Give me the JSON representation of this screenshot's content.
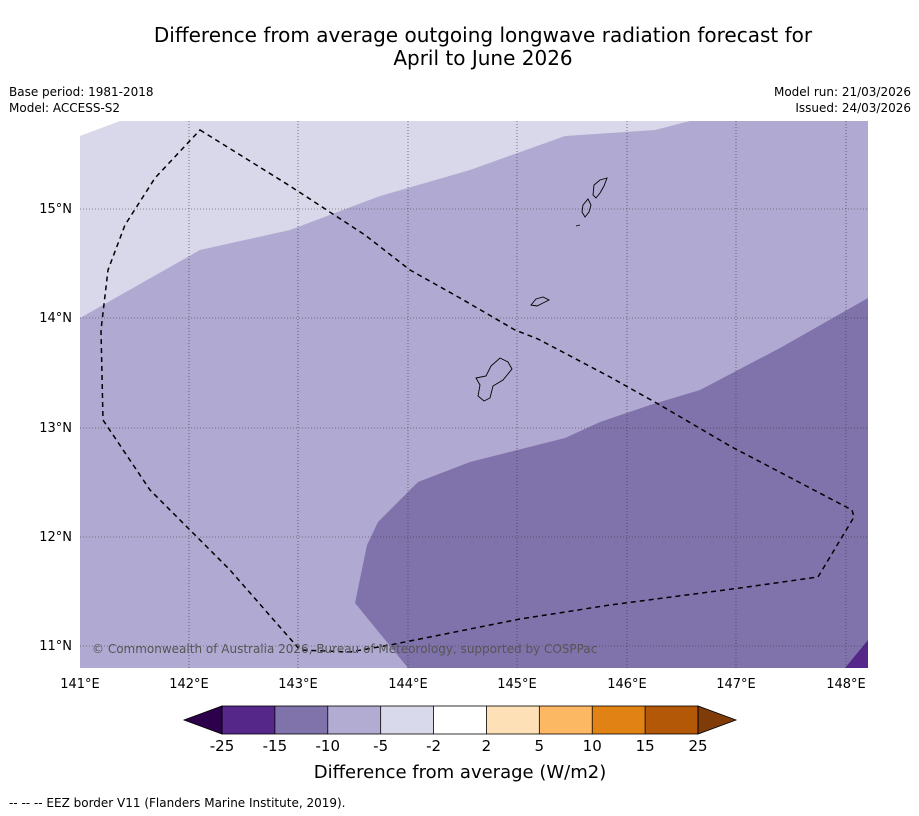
{
  "title": {
    "line1": "Difference from average outgoing longwave radiation forecast for",
    "line2": "April to June 2026"
  },
  "meta": {
    "base_period": "Base period: 1981-2018",
    "model": "Model: ACCESS-S2",
    "model_run": "Model run: 21/03/2026",
    "issued": "Issued: 24/03/2026"
  },
  "map": {
    "lat_labels": [
      "15°N",
      "14°N",
      "13°N",
      "12°N",
      "11°N"
    ],
    "lon_labels": [
      "141°E",
      "142°E",
      "143°E",
      "144°E",
      "145°E",
      "146°E",
      "147°E",
      "148°E"
    ],
    "copyright": "© Commonwealth of Australia 2026, Bureau of Meteorology, supported by COSPPac",
    "region_colors": {
      "light": "#d8d8ea",
      "medium": "#b0aad2",
      "dark": "#8073ac",
      "darkest": "#542788"
    }
  },
  "colorbar": {
    "ticks": [
      "-25",
      "-15",
      "-10",
      "-5",
      "-2",
      "2",
      "5",
      "10",
      "15",
      "25"
    ],
    "colors": [
      "#2d004b",
      "#542788",
      "#8073ac",
      "#b2abd2",
      "#d8daeb",
      "#ffffff",
      "#fee0b6",
      "#fdb863",
      "#e08214",
      "#b35806",
      "#7f3b08"
    ],
    "title": "Difference from average (W/m2)"
  },
  "footnote": "--  --  -- EEZ border V11 (Flanders Marine Institute, 2019)."
}
